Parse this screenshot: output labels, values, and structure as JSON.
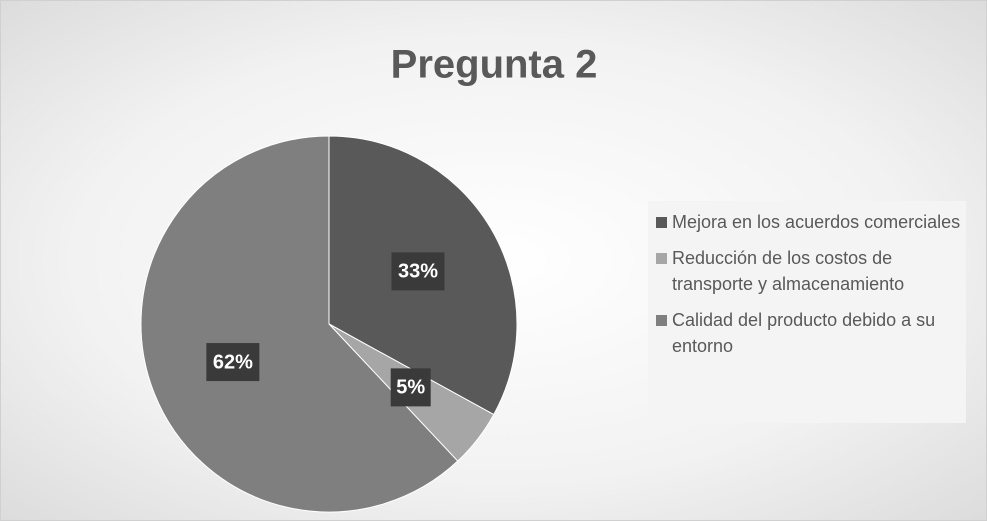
{
  "chart_data": {
    "type": "pie",
    "title": "Pregunta 2",
    "categories": [
      "Mejora en los acuerdos comerciales",
      "Reducción de los costos de transporte y almacenamiento",
      "Calidad del producto debido a su entorno"
    ],
    "values": [
      33,
      5,
      62
    ],
    "value_labels": [
      "33%",
      "5%",
      "62%"
    ],
    "colors": [
      "#595959",
      "#a6a6a6",
      "#7f7f7f"
    ],
    "legend": "right"
  }
}
